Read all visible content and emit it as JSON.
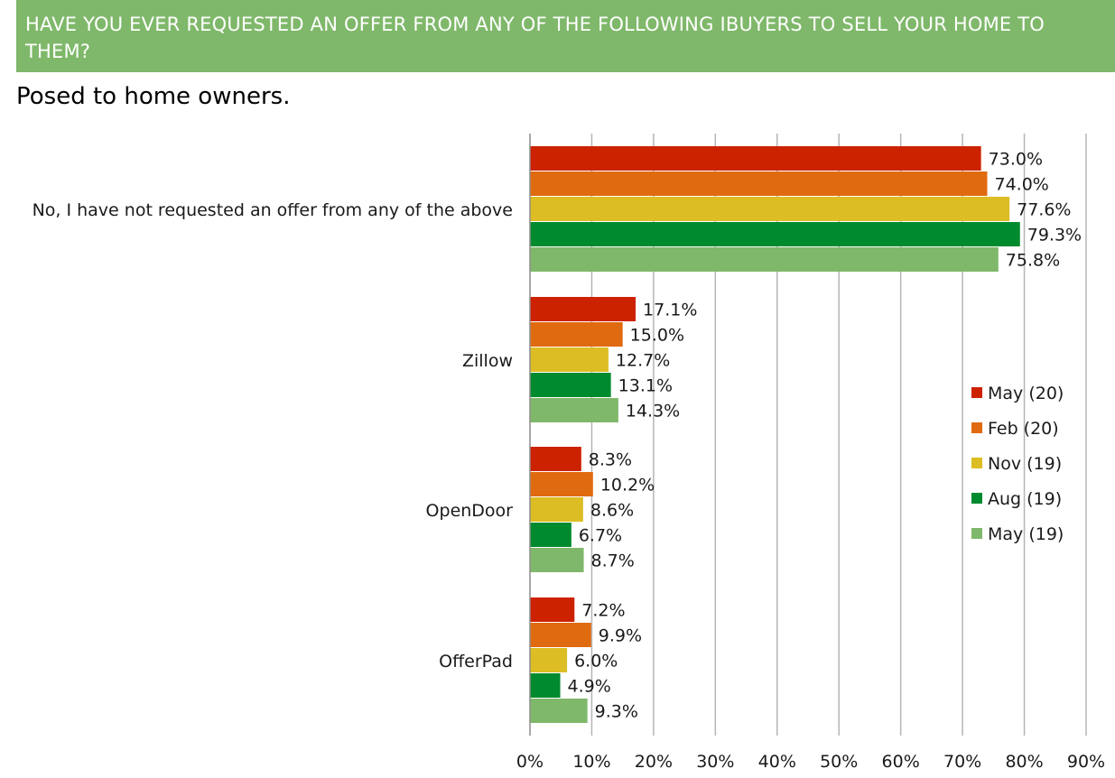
{
  "header": {
    "title": "HAVE YOU EVER REQUESTED AN OFFER FROM ANY OF THE FOLLOWING IBUYERS TO SELL YOUR HOME TO THEM?",
    "subtitle": "Posed to home owners."
  },
  "chart_data": {
    "type": "bar",
    "orientation": "horizontal",
    "title": "HAVE YOU EVER REQUESTED AN OFFER FROM ANY OF THE FOLLOWING IBUYERS TO SELL YOUR HOME TO THEM?",
    "subtitle": "Posed to home owners.",
    "categories": [
      "No, I have not requested an offer from any of the above",
      "Zillow",
      "OpenDoor",
      "OfferPad"
    ],
    "series": [
      {
        "name": "May (20)",
        "color": "#cc2200",
        "values": [
          73.0,
          17.1,
          8.3,
          7.2
        ],
        "labels": [
          "73.0%",
          "17.1%",
          "8.3%",
          "7.2%"
        ]
      },
      {
        "name": "Feb (20)",
        "color": "#e06a10",
        "values": [
          74.0,
          15.0,
          10.2,
          9.9
        ],
        "labels": [
          "74.0%",
          "15.0%",
          "10.2%",
          "9.9%"
        ]
      },
      {
        "name": "Nov (19)",
        "color": "#dcbd23",
        "values": [
          77.6,
          12.7,
          8.6,
          6.0
        ],
        "labels": [
          "77.6%",
          "12.7%",
          "8.6%",
          "6.0%"
        ]
      },
      {
        "name": "Aug (19)",
        "color": "#008a2e",
        "values": [
          79.3,
          13.1,
          6.7,
          4.9
        ],
        "labels": [
          "79.3%",
          "13.1%",
          "6.7%",
          "4.9%"
        ]
      },
      {
        "name": "May (19)",
        "color": "#7fb86a",
        "values": [
          75.8,
          14.3,
          8.7,
          9.3
        ],
        "labels": [
          "75.8%",
          "14.3%",
          "8.7%",
          "9.3%"
        ]
      }
    ],
    "xlim": [
      0,
      90
    ],
    "x_ticks": [
      0,
      10,
      20,
      30,
      40,
      50,
      60,
      70,
      80,
      90
    ],
    "x_tick_labels": [
      "0%",
      "10%",
      "20%",
      "30%",
      "40%",
      "50%",
      "60%",
      "70%",
      "80%",
      "90%"
    ],
    "xlabel": "",
    "ylabel": "",
    "grid": "vertical",
    "legend_position": "right"
  }
}
